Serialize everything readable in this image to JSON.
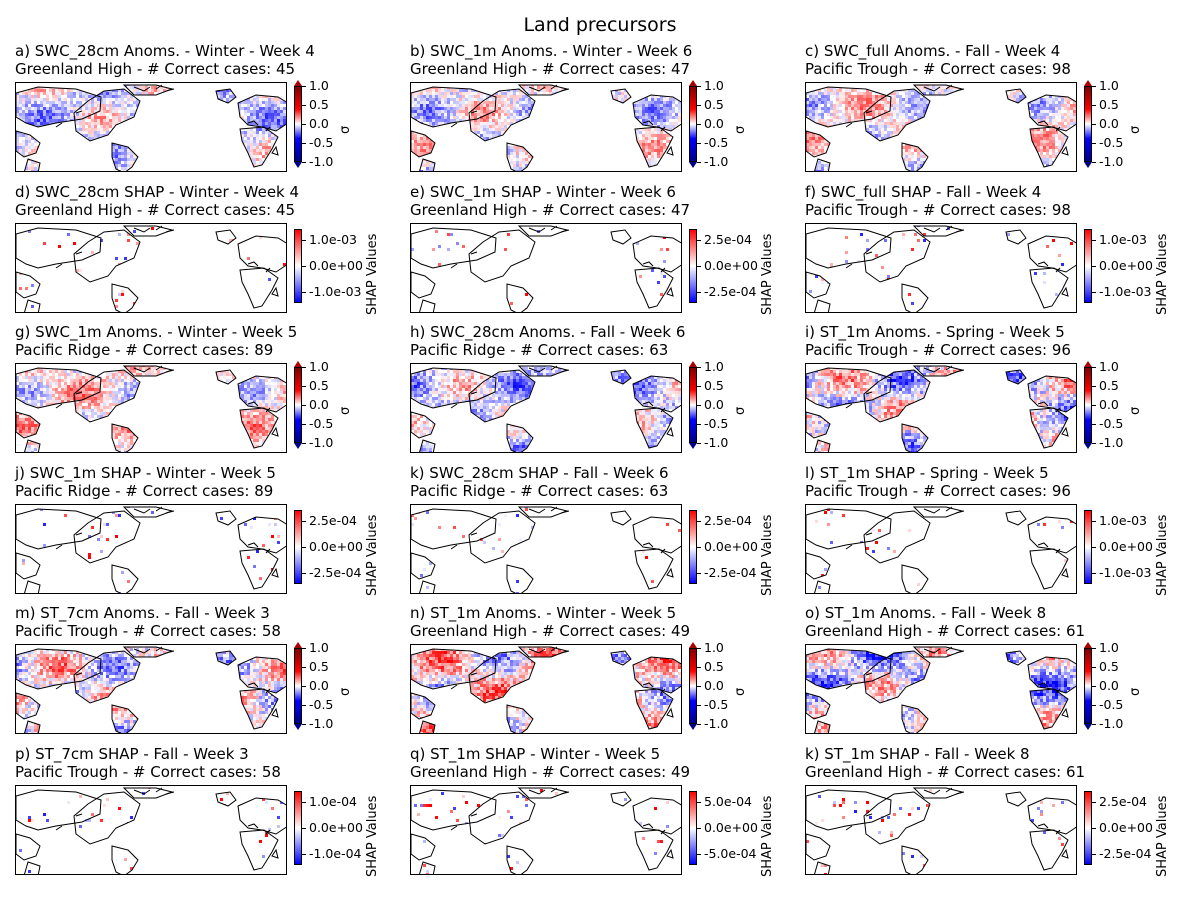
{
  "suptitle": "Land precursors",
  "colors": {
    "positive": "#ff0000",
    "negative": "#0000ff",
    "coast": "#000000"
  },
  "anom_label": "σ",
  "shap_label": "SHAP Values",
  "panels": [
    {
      "line1": "a) SWC_28cm Anoms. - Winter - Week 4",
      "line2": "Greenland High - # Correct cases: 45",
      "kind": "anom",
      "ticks": [
        "1.0",
        "0.5",
        "0.0",
        "-0.5",
        "-1.0"
      ],
      "intensity": 0.7
    },
    {
      "line1": "b) SWC_1m Anoms. - Winter - Week 6",
      "line2": "Greenland High - # Correct cases: 47",
      "kind": "anom",
      "ticks": [
        "1.0",
        "0.5",
        "0.0",
        "-0.5",
        "-1.0"
      ],
      "intensity": 0.7
    },
    {
      "line1": "c) SWC_full Anoms. - Fall - Week 4",
      "line2": "Pacific Trough - # Correct cases: 98",
      "kind": "anom",
      "ticks": [
        "1.0",
        "0.5",
        "0.0",
        "-0.5",
        "-1.0"
      ],
      "intensity": 0.7
    },
    {
      "line1": "d) SWC_28cm SHAP - Winter - Week 4",
      "line2": "Greenland High - # Correct cases: 45",
      "kind": "shap",
      "ticks": [
        "1.0e-03",
        "0.0e+00",
        "-1.0e-03"
      ],
      "intensity": 0.15
    },
    {
      "line1": "e) SWC_1m SHAP - Winter - Week 6",
      "line2": "Greenland High - # Correct cases: 47",
      "kind": "shap",
      "ticks": [
        "2.5e-04",
        "0.0e+00",
        "-2.5e-04"
      ],
      "intensity": 0.15
    },
    {
      "line1": "f) SWC_full SHAP - Fall - Week 4",
      "line2": "Pacific Trough - # Correct cases: 98",
      "kind": "shap",
      "ticks": [
        "1.0e-03",
        "0.0e+00",
        "-1.0e-03"
      ],
      "intensity": 0.15
    },
    {
      "line1": "g) SWC_1m Anoms. - Winter - Week 5",
      "line2": "Pacific Ridge - # Correct cases: 89",
      "kind": "anom",
      "ticks": [
        "1.0",
        "0.5",
        "0.0",
        "-0.5",
        "-1.0"
      ],
      "intensity": 0.7
    },
    {
      "line1": "h) SWC_28cm Anoms. - Fall - Week 6",
      "line2": "Pacific Ridge - # Correct cases: 63",
      "kind": "anom",
      "ticks": [
        "1.0",
        "0.5",
        "0.0",
        "-0.5",
        "-1.0"
      ],
      "intensity": 0.75
    },
    {
      "line1": "i) ST_1m Anoms. - Spring - Week 5",
      "line2": "Pacific Trough - # Correct cases: 96",
      "kind": "anom",
      "ticks": [
        "1.0",
        "0.5",
        "0.0",
        "-0.5",
        "-1.0"
      ],
      "intensity": 0.9
    },
    {
      "line1": "j) SWC_1m SHAP - Winter - Week 5",
      "line2": "Pacific Ridge - # Correct cases: 89",
      "kind": "shap",
      "ticks": [
        "2.5e-04",
        "0.0e+00",
        "-2.5e-04"
      ],
      "intensity": 0.12
    },
    {
      "line1": "k) SWC_28cm SHAP - Fall - Week 6",
      "line2": "Pacific Ridge - # Correct cases: 63",
      "kind": "shap",
      "ticks": [
        "2.5e-04",
        "0.0e+00",
        "-2.5e-04"
      ],
      "intensity": 0.15
    },
    {
      "line1": "l) ST_1m SHAP - Spring - Week 5",
      "line2": "Pacific Trough - # Correct cases: 96",
      "kind": "shap",
      "ticks": [
        "1.0e-03",
        "0.0e+00",
        "-1.0e-03"
      ],
      "intensity": 0.12
    },
    {
      "line1": "m) ST_7cm Anoms. - Fall - Week 3",
      "line2": "Pacific Trough - # Correct cases: 58",
      "kind": "anom",
      "ticks": [
        "1.0",
        "0.5",
        "0.0",
        "-0.5",
        "-1.0"
      ],
      "intensity": 0.85
    },
    {
      "line1": "n) ST_1m Anoms. - Winter - Week 5",
      "line2": "Greenland High - # Correct cases: 49",
      "kind": "anom",
      "ticks": [
        "1.0",
        "0.5",
        "0.0",
        "-0.5",
        "-1.0"
      ],
      "intensity": 0.9
    },
    {
      "line1": "o) ST_1m Anoms. - Fall - Week 8",
      "line2": "Greenland High - # Correct cases: 61",
      "kind": "anom",
      "ticks": [
        "1.0",
        "0.5",
        "0.0",
        "-0.5",
        "-1.0"
      ],
      "intensity": 0.9
    },
    {
      "line1": "p) ST_7cm SHAP - Fall - Week 3",
      "line2": "Pacific Trough - # Correct cases: 58",
      "kind": "shap",
      "ticks": [
        "1.0e-04",
        "0.0e+00",
        "-1.0e-04"
      ],
      "intensity": 0.12
    },
    {
      "line1": "q) ST_1m SHAP - Winter - Week 5",
      "line2": "Greenland High - # Correct cases: 49",
      "kind": "shap",
      "ticks": [
        "5.0e-04",
        "0.0e+00",
        "-5.0e-04"
      ],
      "intensity": 0.15
    },
    {
      "line1": "k) ST_1m SHAP - Fall - Week 8",
      "line2": "Greenland High - # Correct cases: 61",
      "kind": "shap",
      "ticks": [
        "2.5e-04",
        "0.0e+00",
        "-2.5e-04"
      ],
      "intensity": 0.12
    }
  ],
  "chart_data": {
    "type": "heatmap",
    "title": "Land precursors",
    "layout": "6 rows x 3 columns of map panels with colorbars",
    "anomaly_colorbar": {
      "label": "σ",
      "range": [
        -1.0,
        1.0
      ],
      "ticks": [
        1.0,
        0.5,
        0.0,
        -0.5,
        -1.0
      ],
      "colormap": "seismic"
    },
    "shap_colorbars": [
      {
        "panel": "d",
        "ticks": [
          "1.0e-03",
          "0.0e+00",
          "-1.0e-03"
        ]
      },
      {
        "panel": "e",
        "ticks": [
          "2.5e-04",
          "0.0e+00",
          "-2.5e-04"
        ]
      },
      {
        "panel": "f",
        "ticks": [
          "1.0e-03",
          "0.0e+00",
          "-1.0e-03"
        ]
      },
      {
        "panel": "j",
        "ticks": [
          "2.5e-04",
          "0.0e+00",
          "-2.5e-04"
        ]
      },
      {
        "panel": "k",
        "ticks": [
          "2.5e-04",
          "0.0e+00",
          "-2.5e-04"
        ]
      },
      {
        "panel": "l",
        "ticks": [
          "1.0e-03",
          "0.0e+00",
          "-1.0e-03"
        ]
      },
      {
        "panel": "p",
        "ticks": [
          "1.0e-04",
          "0.0e+00",
          "-1.0e-04"
        ]
      },
      {
        "panel": "q",
        "ticks": [
          "5.0e-04",
          "0.0e+00",
          "-5.0e-04"
        ]
      },
      {
        "panel": "k (last)",
        "ticks": [
          "2.5e-04",
          "0.0e+00",
          "-2.5e-04"
        ]
      }
    ],
    "correct_cases": [
      45,
      47,
      98,
      45,
      47,
      98,
      89,
      63,
      96,
      89,
      63,
      96,
      58,
      49,
      61,
      58,
      49,
      61
    ]
  }
}
